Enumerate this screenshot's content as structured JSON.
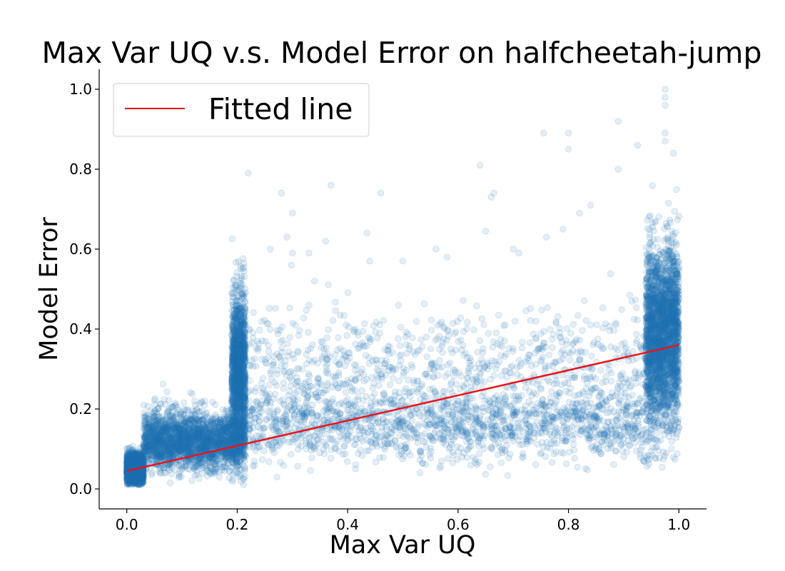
{
  "chart_data": {
    "type": "scatter",
    "title": "Max Var UQ v.s. Model Error on halfcheetah-jump",
    "xlabel": "Max Var UQ",
    "ylabel": "Model Error",
    "xlim": [
      -0.05,
      1.05
    ],
    "ylim": [
      -0.05,
      1.05
    ],
    "x_ticks": [
      0.0,
      0.2,
      0.4,
      0.6,
      0.8,
      1.0
    ],
    "y_ticks": [
      0.0,
      0.2,
      0.4,
      0.6,
      0.8,
      1.0
    ],
    "x_tick_labels": [
      "0.0",
      "0.2",
      "0.4",
      "0.6",
      "0.8",
      "1.0"
    ],
    "y_tick_labels": [
      "0.0",
      "0.2",
      "0.4",
      "0.6",
      "0.8",
      "1.0"
    ],
    "grid": false,
    "legend_position": "top-left",
    "legend_entries": [
      "Fitted line"
    ],
    "point_color": "#1f77b4",
    "point_alpha": 0.12,
    "line_color": "#e8141b",
    "fitted_line": {
      "name": "Fitted line",
      "x": [
        0.0,
        1.0
      ],
      "y": [
        0.045,
        0.36
      ]
    },
    "clusters": [
      {
        "x_range": [
          0.0,
          0.03
        ],
        "y_center": 0.05,
        "y_spread": 0.03,
        "density": "very-high"
      },
      {
        "x_range": [
          0.03,
          0.215
        ],
        "y_center": 0.12,
        "y_spread": 0.06,
        "density": "very-high"
      },
      {
        "x_range": [
          0.19,
          0.215
        ],
        "y_center": 0.3,
        "y_spread": 0.15,
        "density": "high"
      },
      {
        "x_range": [
          0.22,
          0.95
        ],
        "y_center": 0.16,
        "y_spread": 0.08,
        "density": "high"
      },
      {
        "x_range": [
          0.22,
          0.95
        ],
        "y_center": 0.3,
        "y_spread": 0.12,
        "density": "medium"
      },
      {
        "x_range": [
          0.94,
          1.0
        ],
        "y_center": 0.38,
        "y_spread": 0.18,
        "density": "very-high"
      }
    ],
    "notable_points": [
      {
        "x": 0.975,
        "y": 1.0
      },
      {
        "x": 0.975,
        "y": 0.98
      },
      {
        "x": 0.975,
        "y": 0.96
      },
      {
        "x": 0.975,
        "y": 0.89
      },
      {
        "x": 0.975,
        "y": 0.87
      },
      {
        "x": 0.99,
        "y": 0.84
      },
      {
        "x": 0.89,
        "y": 0.92
      },
      {
        "x": 0.8,
        "y": 0.89
      },
      {
        "x": 0.755,
        "y": 0.89
      },
      {
        "x": 0.8,
        "y": 0.85
      },
      {
        "x": 0.925,
        "y": 0.86
      },
      {
        "x": 0.64,
        "y": 0.81
      },
      {
        "x": 0.89,
        "y": 0.8
      },
      {
        "x": 0.22,
        "y": 0.79
      },
      {
        "x": 0.37,
        "y": 0.76
      },
      {
        "x": 0.28,
        "y": 0.74
      },
      {
        "x": 0.46,
        "y": 0.74
      },
      {
        "x": 0.665,
        "y": 0.74
      },
      {
        "x": 0.66,
        "y": 0.73
      },
      {
        "x": 0.3,
        "y": 0.69
      },
      {
        "x": 0.84,
        "y": 0.71
      },
      {
        "x": 0.82,
        "y": 0.69
      },
      {
        "x": 0.79,
        "y": 0.65
      },
      {
        "x": 0.435,
        "y": 0.64
      },
      {
        "x": 0.65,
        "y": 0.645
      },
      {
        "x": 0.76,
        "y": 0.63
      },
      {
        "x": 0.29,
        "y": 0.63
      },
      {
        "x": 0.36,
        "y": 0.62
      },
      {
        "x": 0.56,
        "y": 0.6
      },
      {
        "x": 0.7,
        "y": 0.6
      },
      {
        "x": 0.71,
        "y": 0.59
      },
      {
        "x": 0.3,
        "y": 0.59
      },
      {
        "x": 0.26,
        "y": 0.6
      },
      {
        "x": 0.33,
        "y": 0.59
      },
      {
        "x": 0.5,
        "y": 0.57
      },
      {
        "x": 0.58,
        "y": 0.58
      },
      {
        "x": 0.44,
        "y": 0.57
      },
      {
        "x": 0.34,
        "y": 0.52
      },
      {
        "x": 0.33,
        "y": 0.46
      }
    ]
  }
}
